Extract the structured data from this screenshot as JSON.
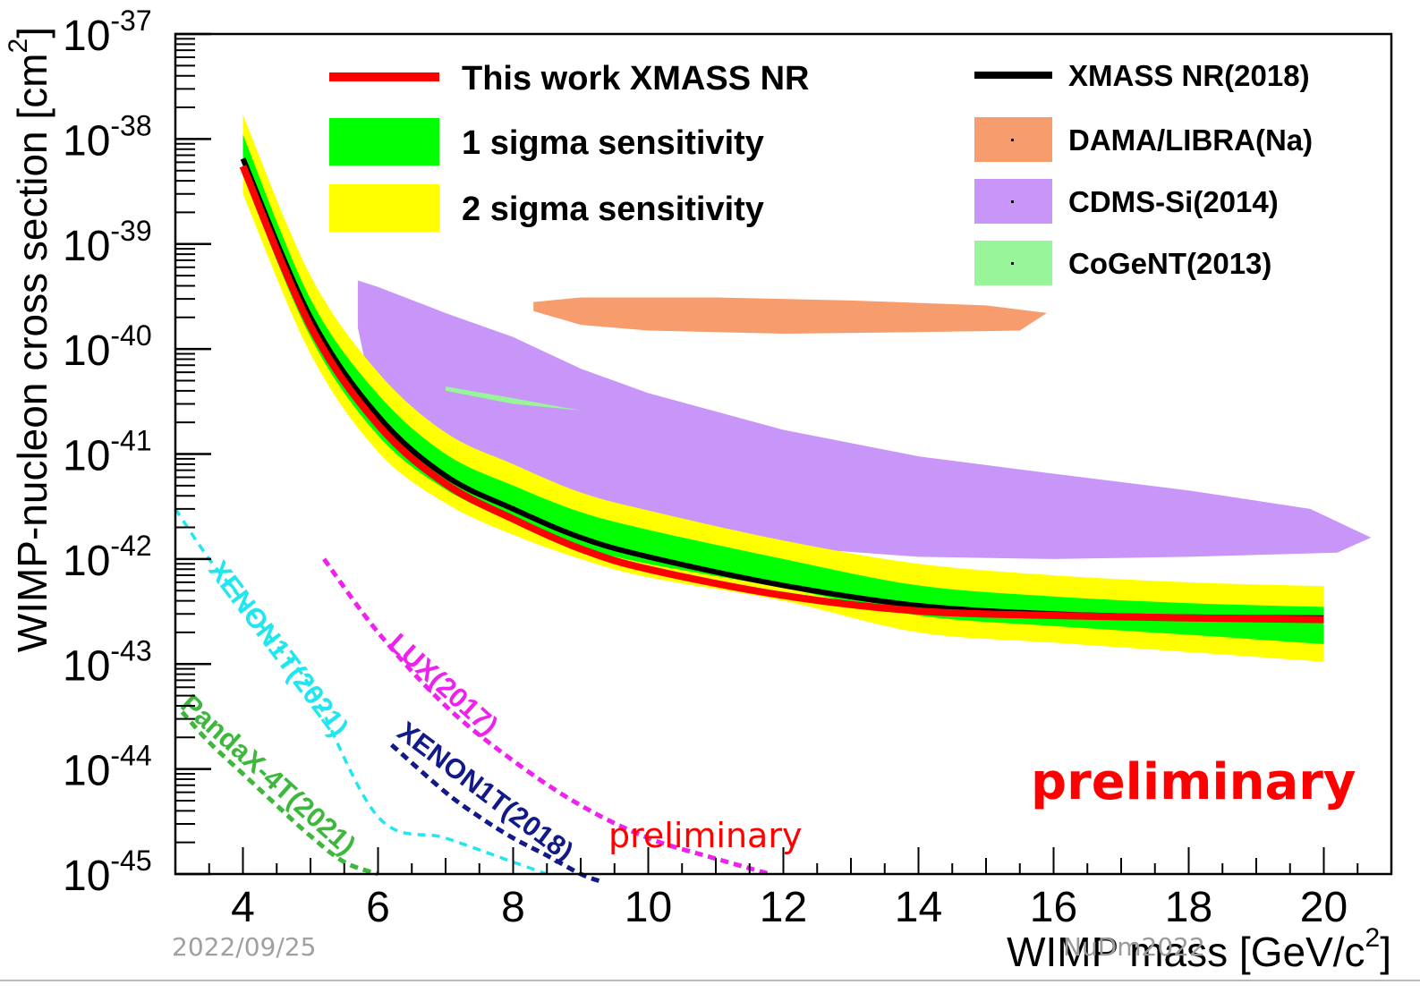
{
  "footer": {
    "date": "2022/09/25",
    "conference": "NuDm2022"
  },
  "stamp": {
    "big": "preliminary",
    "small": "preliminary"
  },
  "chart_data": {
    "type": "line",
    "xlabel": "WIMP mass [GeV/c",
    "xlabel_sup": "2",
    "xlabel_end": "]",
    "ylabel": "WIMP-nucleon cross section [cm",
    "ylabel_sup": "2",
    "ylabel_end": "]",
    "x_scale": "linear",
    "y_scale": "log",
    "xlim": [
      3,
      21
    ],
    "ylim": [
      1e-45,
      1e-37
    ],
    "x_ticks": [
      "4",
      "6",
      "8",
      "10",
      "12",
      "14",
      "16",
      "18",
      "20"
    ],
    "y_ticks": [
      {
        "base": "10",
        "exp": "-45",
        "value": 1e-45
      },
      {
        "base": "10",
        "exp": "-44",
        "value": 1e-44
      },
      {
        "base": "10",
        "exp": "-43",
        "value": 1e-43
      },
      {
        "base": "10",
        "exp": "-42",
        "value": 1e-42
      },
      {
        "base": "10",
        "exp": "-41",
        "value": 1e-41
      },
      {
        "base": "10",
        "exp": "-40",
        "value": 1e-40
      },
      {
        "base": "10",
        "exp": "-39",
        "value": 1e-39
      },
      {
        "base": "10",
        "exp": "-38",
        "value": 1e-38
      },
      {
        "base": "10",
        "exp": "-37",
        "value": 1e-37
      }
    ],
    "colors": {
      "this_work": "#ff0000",
      "sigma1": "#00ff00",
      "sigma2": "#ffff00",
      "xmass2018": "#000000",
      "dama": "#f79c6d",
      "cdms": "#c896f8",
      "cogent": "#99f599",
      "xenon1t_2021": "#22e6ef",
      "lux2017": "#ee22ee",
      "xenon1t_2018": "#121a8a",
      "pandax4t": "#3db83d",
      "preliminary": "#ff0000"
    },
    "legend": {
      "placement": "top",
      "left_entries": [
        {
          "key": "this_work",
          "label": "This work XMASS NR",
          "style": "line"
        },
        {
          "key": "sigma1",
          "label": "1 sigma sensitivity",
          "style": "box"
        },
        {
          "key": "sigma2",
          "label": "2 sigma sensitivity",
          "style": "box"
        }
      ],
      "right_entries": [
        {
          "key": "xmass2018",
          "label": "XMASS NR(2018)",
          "style": "line"
        },
        {
          "key": "dama",
          "label": "DAMA/LIBRA(Na)",
          "style": "box"
        },
        {
          "key": "cdms",
          "label": "CDMS-Si(2014)",
          "style": "box"
        },
        {
          "key": "cogent",
          "label": "CoGeNT(2013)",
          "style": "box"
        }
      ]
    },
    "series": [
      {
        "key": "sigma2",
        "kind": "band",
        "x": [
          4,
          5,
          6,
          7,
          8,
          9,
          10,
          12,
          14,
          16,
          18,
          20
        ],
        "lower": [
          3e-39,
          9e-41,
          1.05e-41,
          3.4e-42,
          1.7e-42,
          1e-42,
          6.7e-43,
          4e-43,
          2e-43,
          1.6e-43,
          1.3e-43,
          1.05e-43
        ],
        "upper": [
          1.7e-38,
          5e-40,
          6e-41,
          1.6e-41,
          8e-42,
          4.3e-42,
          2.9e-42,
          1.5e-42,
          9e-43,
          7e-43,
          6e-43,
          5.5e-43
        ]
      },
      {
        "key": "sigma1",
        "kind": "band",
        "x": [
          4,
          5,
          6,
          7,
          8,
          9,
          10,
          12,
          14,
          16,
          18,
          20
        ],
        "lower": [
          4.5e-39,
          1.3e-40,
          1.5e-41,
          4.6e-42,
          2.3e-42,
          1.3e-42,
          9e-43,
          5.3e-43,
          2.9e-43,
          2.3e-43,
          1.9e-43,
          1.55e-43
        ],
        "upper": [
          1.1e-38,
          3e-40,
          3.7e-41,
          1e-41,
          5e-42,
          2.8e-42,
          1.9e-42,
          1e-42,
          5.6e-43,
          4.4e-43,
          3.8e-43,
          3.5e-43
        ]
      },
      {
        "key": "xmass2018",
        "kind": "line",
        "x": [
          4,
          5,
          6,
          7,
          8,
          9,
          10,
          12,
          14,
          16,
          18,
          20
        ],
        "y": [
          6.5e-39,
          2e-40,
          2.3e-41,
          6.2e-42,
          3e-42,
          1.6e-42,
          1.05e-42,
          5.6e-43,
          3.6e-43,
          3e-43,
          2.8e-43,
          2.75e-43
        ]
      },
      {
        "key": "this_work",
        "kind": "line",
        "x": [
          4,
          5,
          6,
          7,
          8,
          9,
          10,
          12,
          14,
          16,
          18,
          20
        ],
        "y": [
          5.5e-39,
          1.65e-40,
          1.9e-41,
          5.2e-42,
          2.4e-42,
          1.25e-42,
          8e-43,
          4.5e-43,
          3.2e-43,
          2.9e-43,
          2.75e-43,
          2.65e-43
        ]
      }
    ],
    "regions": [
      {
        "key": "dama",
        "label": "DAMA/LIBRA(Na)",
        "outline": [
          [
            8.3,
            2.8e-40
          ],
          [
            9.0,
            3.1e-40
          ],
          [
            11.0,
            3.1e-40
          ],
          [
            13.0,
            2.9e-40
          ],
          [
            15.0,
            2.6e-40
          ],
          [
            15.9,
            2.2e-40
          ],
          [
            15.5,
            1.5e-40
          ],
          [
            14.0,
            1.45e-40
          ],
          [
            12.0,
            1.4e-40
          ],
          [
            10.0,
            1.5e-40
          ],
          [
            9.0,
            1.7e-40
          ],
          [
            8.3,
            2.3e-40
          ]
        ]
      },
      {
        "key": "cdms",
        "label": "CDMS-Si(2014)",
        "outline": [
          [
            5.7,
            4.5e-40
          ],
          [
            6.0,
            3.9e-40
          ],
          [
            7.0,
            2.2e-40
          ],
          [
            8.0,
            1.3e-40
          ],
          [
            9.0,
            6.5e-41
          ],
          [
            10.0,
            3.8e-41
          ],
          [
            12.0,
            1.7e-41
          ],
          [
            14.0,
            9.5e-42
          ],
          [
            16.0,
            6.5e-42
          ],
          [
            18.0,
            4.5e-42
          ],
          [
            19.8,
            3e-42
          ],
          [
            20.7,
            1.6e-42
          ],
          [
            20.2,
            1.15e-42
          ],
          [
            18.0,
            1.05e-42
          ],
          [
            16.0,
            1e-42
          ],
          [
            14.0,
            1.05e-42
          ],
          [
            12.0,
            1.3e-42
          ],
          [
            10.0,
            2e-42
          ],
          [
            8.0,
            4.2e-42
          ],
          [
            7.0,
            7e-42
          ],
          [
            6.0,
            2e-41
          ],
          [
            5.7,
            1.6e-40
          ]
        ]
      },
      {
        "key": "cogent",
        "label": "CoGeNT(2013)",
        "outline": [
          [
            7.0,
            4.4e-41
          ],
          [
            8.0,
            3.4e-41
          ],
          [
            9.0,
            2.6e-41
          ],
          [
            8.0,
            3e-41
          ],
          [
            7.0,
            4e-41
          ]
        ]
      }
    ],
    "other_limits": [
      {
        "key": "xenon1t_2021",
        "label": "XENON1T(2021)",
        "x": [
          3.0,
          3.5,
          4.0,
          4.5,
          5.0,
          6.0,
          7.0,
          8.0,
          8.5
        ],
        "y": [
          3e-42,
          1e-42,
          4e-43,
          1.5e-43,
          6e-44,
          3.5e-45,
          2.2e-45,
          1.3e-45,
          1e-45
        ]
      },
      {
        "key": "lux2017",
        "label": "LUX(2017)",
        "x": [
          5.2,
          6.0,
          7.0,
          8.0,
          9.0,
          10.0,
          11.0,
          11.8
        ],
        "y": [
          1e-42,
          2e-43,
          4e-44,
          1.2e-44,
          4.5e-45,
          2.2e-45,
          1.4e-45,
          1e-45
        ]
      },
      {
        "key": "xenon1t_2018",
        "label": "XENON1T(2018)",
        "x": [
          6.2,
          7.0,
          7.5,
          8.0,
          8.5,
          9.0,
          9.3
        ],
        "y": [
          1.7e-44,
          6e-45,
          3.5e-45,
          2.2e-45,
          1.5e-45,
          1e-45,
          8.5e-46
        ]
      },
      {
        "key": "pandax4t",
        "label": "PandaX-4T(2021)",
        "x": [
          3.1,
          3.5,
          4.0,
          4.5,
          5.0,
          5.5,
          6.0
        ],
        "y": [
          3.5e-44,
          1.8e-44,
          9e-45,
          4.5e-45,
          2.3e-45,
          1.3e-45,
          1e-45
        ]
      }
    ]
  }
}
